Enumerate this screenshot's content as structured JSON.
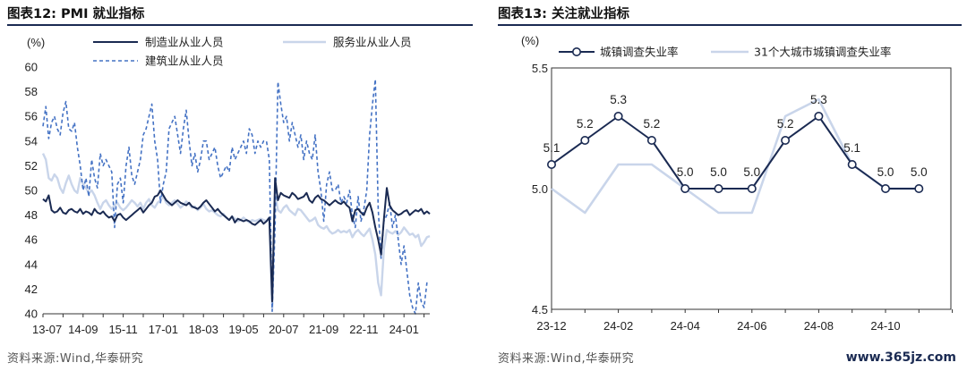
{
  "left_panel": {
    "title": "图表12:  PMI 就业指标",
    "source": "资料来源:Wind,华泰研究"
  },
  "right_panel": {
    "title": "图表13:  关注就业指标",
    "source": "资料来源:Wind,华泰研究"
  },
  "watermark": "www.365jz.com",
  "colors": {
    "navy": "#1a2a52",
    "dash": "#4472c4",
    "light": "#c9d5ea",
    "rule": "#1a2a52"
  },
  "chart_data": [
    {
      "type": "line",
      "title": "",
      "ylabel": "(%)",
      "ylim": [
        40,
        60
      ],
      "yticks": [
        40,
        42,
        44,
        46,
        48,
        50,
        52,
        54,
        56,
        58,
        60
      ],
      "xtick_labels": [
        "13-07",
        "14-09",
        "15-11",
        "17-01",
        "18-03",
        "19-05",
        "20-07",
        "21-09",
        "22-11",
        "24-01"
      ],
      "xtick_index": [
        0,
        14,
        28,
        42,
        56,
        70,
        84,
        98,
        112,
        126
      ],
      "series": [
        {
          "name": "制造业从业人员",
          "style": "solid-navy",
          "values": [
            49.3,
            49.1,
            49.6,
            48.4,
            48.2,
            48.3,
            48.6,
            48.2,
            48.1,
            48.4,
            48.5,
            48.3,
            48.2,
            48.5,
            48.1,
            48.3,
            48.2,
            48.0,
            48.5,
            48.2,
            48.1,
            48.3,
            48.0,
            47.8,
            47.9,
            47.5,
            48.0,
            48.1,
            47.8,
            47.6,
            47.8,
            48.0,
            48.2,
            48.4,
            48.6,
            48.2,
            48.5,
            48.8,
            49.0,
            49.5,
            49.6,
            50.0,
            49.6,
            49.2,
            49.0,
            48.8,
            49.0,
            49.2,
            49.0,
            48.9,
            48.8,
            49.0,
            48.7,
            48.6,
            48.5,
            48.7,
            49.0,
            49.2,
            48.9,
            48.6,
            48.3,
            48.5,
            48.2,
            48.0,
            47.8,
            47.6,
            47.9,
            47.4,
            47.7,
            47.6,
            47.5,
            47.6,
            47.5,
            47.3,
            47.2,
            47.4,
            47.6,
            47.3,
            47.5,
            47.8,
            41.0,
            51.0,
            49.2,
            49.8,
            49.6,
            49.5,
            49.4,
            49.8,
            49.6,
            49.3,
            49.4,
            49.5,
            49.8,
            49.2,
            49.0,
            49.4,
            49.6,
            49.3,
            49.2,
            49.0,
            48.8,
            49.0,
            49.2,
            49.0,
            48.9,
            49.1,
            48.8,
            48.6,
            47.5,
            48.4,
            48.5,
            48.2,
            48.0,
            48.6,
            49.0,
            48.2,
            47.0,
            46.0,
            44.8,
            47.7,
            50.2,
            48.8,
            48.4,
            48.2,
            48.0,
            48.1,
            48.3,
            48.4,
            48.0,
            48.2,
            48.4,
            48.3,
            48.5,
            48.1,
            48.3,
            48.1
          ]
        },
        {
          "name": "服务业从业人员",
          "style": "solid-light",
          "values": [
            53.0,
            52.5,
            51.0,
            50.8,
            51.3,
            51.0,
            50.2,
            49.8,
            50.6,
            51.2,
            50.5,
            50.0,
            49.8,
            51.0,
            50.5,
            50.2,
            49.8,
            50.0,
            49.6,
            49.0,
            48.5,
            49.0,
            49.2,
            48.8,
            48.5,
            48.8,
            49.0,
            48.6,
            48.4,
            48.6,
            48.9,
            49.2,
            49.0,
            48.7,
            49.0,
            48.5,
            49.0,
            49.3,
            48.8,
            48.6,
            49.0,
            49.2,
            49.5,
            49.0,
            48.8,
            49.0,
            49.2,
            48.9,
            48.6,
            48.8,
            49.1,
            48.9,
            48.6,
            48.7,
            48.4,
            48.6,
            48.9,
            48.5,
            48.3,
            48.4,
            48.2,
            48.0,
            47.9,
            48.1,
            47.8,
            47.6,
            47.9,
            47.7,
            47.5,
            47.6,
            47.8,
            47.6,
            47.4,
            47.6,
            47.5,
            47.6,
            47.7,
            47.6,
            47.5,
            47.8,
            40.4,
            49.8,
            48.4,
            48.2,
            48.6,
            48.8,
            48.4,
            48.2,
            48.0,
            48.5,
            48.4,
            48.1,
            47.8,
            47.5,
            47.6,
            47.8,
            47.2,
            47.0,
            46.9,
            47.1,
            46.7,
            46.5,
            46.6,
            46.8,
            46.6,
            46.7,
            46.6,
            46.8,
            46.2,
            46.6,
            46.8,
            46.5,
            46.3,
            46.6,
            46.9,
            46.0,
            44.8,
            42.5,
            41.5,
            45.3,
            46.8,
            46.6,
            46.5,
            46.7,
            46.4,
            46.6,
            47.0,
            46.7,
            46.4,
            46.5,
            46.2,
            46.4,
            45.5,
            45.8,
            46.2,
            46.3
          ]
        },
        {
          "name": "建筑业从业人员",
          "style": "dashed-blue",
          "values": [
            55.2,
            56.8,
            54.2,
            55.5,
            56.0,
            55.0,
            54.5,
            56.3,
            57.2,
            55.0,
            54.8,
            55.5,
            53.5,
            52.0,
            50.0,
            51.0,
            49.5,
            52.5,
            51.0,
            50.2,
            53.0,
            52.0,
            52.5,
            52.0,
            51.5,
            47.0,
            50.5,
            51.0,
            49.0,
            52.0,
            53.5,
            51.2,
            50.5,
            51.5,
            52.5,
            54.5,
            55.0,
            56.0,
            57.0,
            54.0,
            52.5,
            49.0,
            50.5,
            51.5,
            55.0,
            55.5,
            56.0,
            54.5,
            53.0,
            55.0,
            56.5,
            54.0,
            52.0,
            53.0,
            51.5,
            52.5,
            54.0,
            54.0,
            52.5,
            53.0,
            53.5,
            52.0,
            51.0,
            51.5,
            52.0,
            51.5,
            53.5,
            52.5,
            53.0,
            53.5,
            54.0,
            53.0,
            55.0,
            54.5,
            53.0,
            54.0,
            53.5,
            54.0,
            54.0,
            52.5,
            40.2,
            47.0,
            58.8,
            57.0,
            55.5,
            56.0,
            54.0,
            55.5,
            54.5,
            53.5,
            54.5,
            52.5,
            54.0,
            53.0,
            52.5,
            54.5,
            51.5,
            50.0,
            47.5,
            50.5,
            51.5,
            50.0,
            50.0,
            50.5,
            49.0,
            49.5,
            49.0,
            50.0,
            48.0,
            47.0,
            49.5,
            47.5,
            48.5,
            50.0,
            54.5,
            57.0,
            59.0,
            48.5,
            44.5,
            47.5,
            48.0,
            49.0,
            47.0,
            48.0,
            46.0,
            44.0,
            45.5,
            43.5,
            41.5,
            40.5,
            40.0,
            42.5,
            41.0,
            40.5,
            42.5,
            42.5
          ]
        }
      ],
      "legend": "top"
    },
    {
      "type": "line",
      "title": "",
      "ylabel": "(%)",
      "ylim": [
        4.5,
        5.5
      ],
      "yticks": [
        "4.5",
        "5.0",
        "5.5"
      ],
      "x": [
        "23-12",
        "24-01",
        "24-02",
        "24-03",
        "24-04",
        "24-05",
        "24-06",
        "24-07",
        "24-08",
        "24-09",
        "24-10",
        "24-11"
      ],
      "xtick_labels": [
        "23-12",
        "24-02",
        "24-04",
        "24-06",
        "24-08",
        "24-10"
      ],
      "xtick_index": [
        0,
        2,
        4,
        6,
        8,
        10
      ],
      "series": [
        {
          "name": "城镇调查失业率",
          "style": "solid-navy-markers",
          "values": [
            5.1,
            5.2,
            5.3,
            5.2,
            5.0,
            5.0,
            5.0,
            5.2,
            5.3,
            5.1,
            5.0,
            5.0
          ],
          "labels": [
            "5.1",
            "5.2",
            "5.3",
            "5.2",
            "5.0",
            "5.0",
            "5.0",
            "5.2",
            "5.3",
            "5.1",
            "5.0",
            "5.0"
          ]
        },
        {
          "name": "31个大城市城镇调查失业率",
          "style": "solid-light",
          "values": [
            5.0,
            4.9,
            5.1,
            5.1,
            5.0,
            4.9,
            4.9,
            5.3,
            5.37,
            5.1,
            5.0,
            5.0
          ]
        }
      ],
      "legend": "top"
    }
  ]
}
